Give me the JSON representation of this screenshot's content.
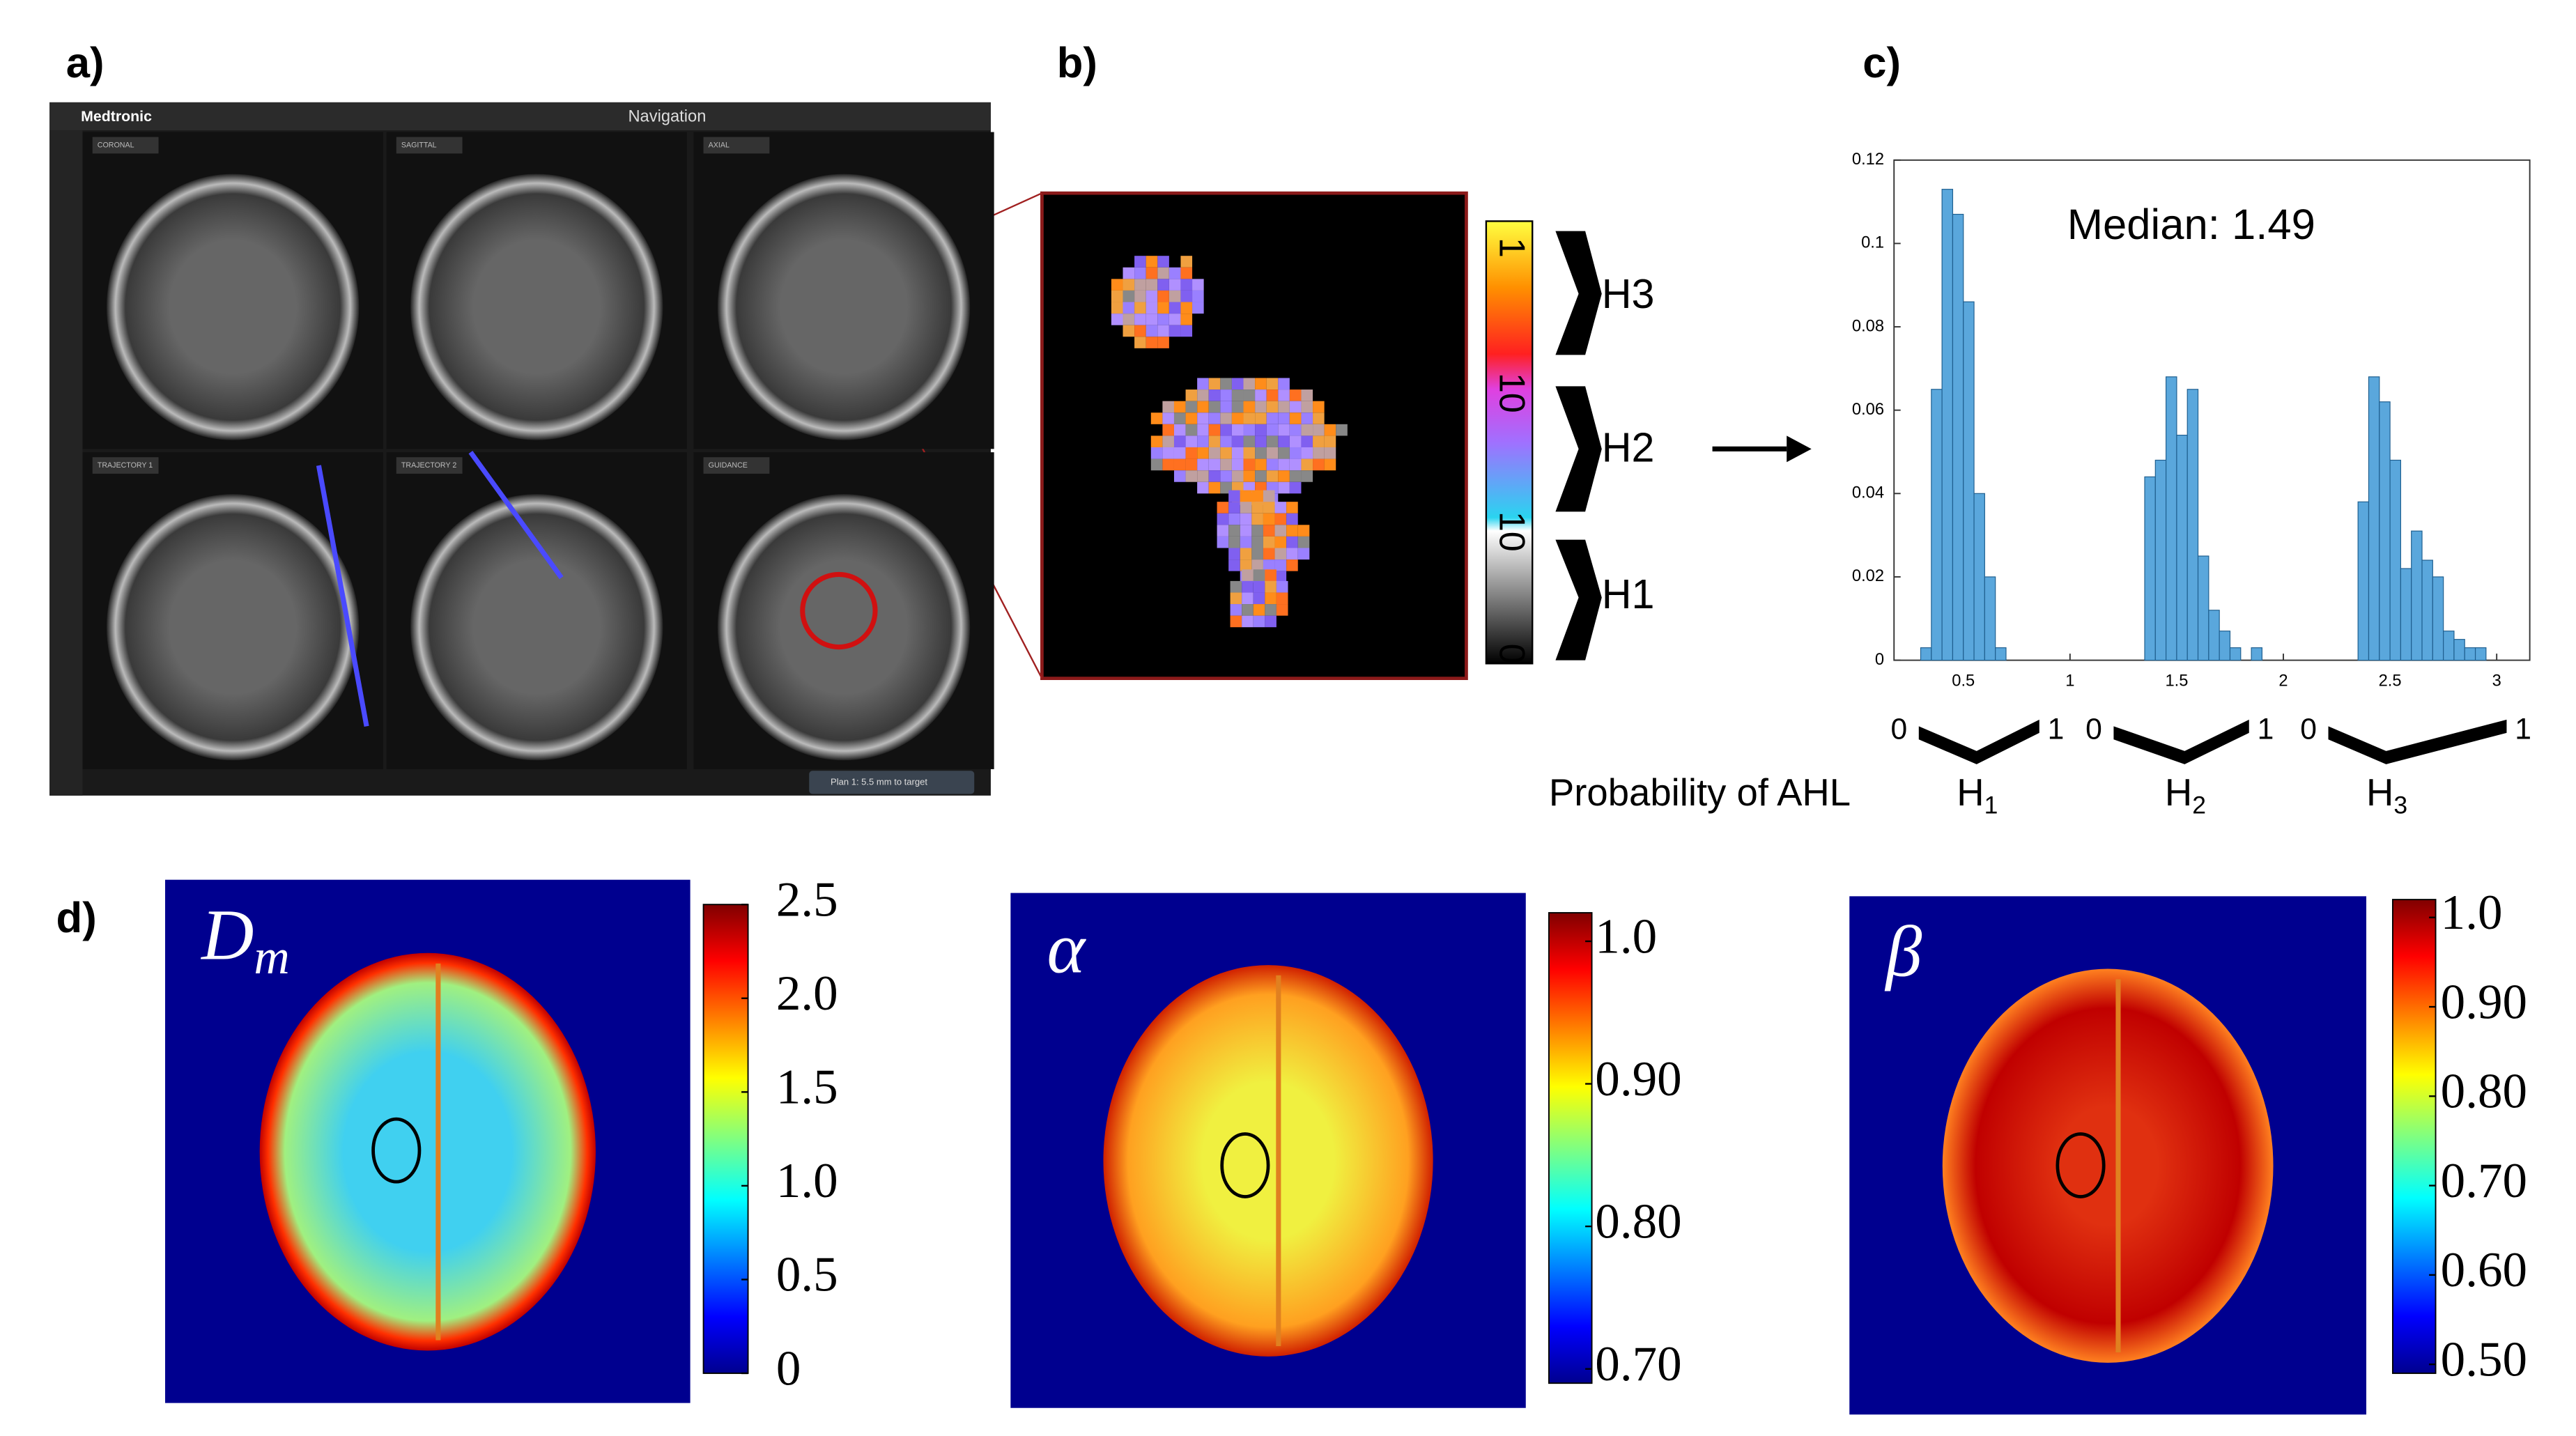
{
  "panels": {
    "a": "a)",
    "b": "b)",
    "c": "c)",
    "d": "d)"
  },
  "navigation": {
    "brand": "Medtronic",
    "title": "Navigation",
    "views": [
      "CORONAL",
      "SAGITTAL",
      "AXIAL",
      "TRAJECTORY 1",
      "TRAJECTORY 2",
      "GUIDANCE"
    ],
    "status": "Plan 1: 5.5 mm to target"
  },
  "probability_map": {
    "colorbar_labels": [
      "0",
      "10",
      "10",
      "1"
    ],
    "classes": [
      "H3",
      "H2",
      "H1"
    ]
  },
  "chart_data": {
    "type": "histogram",
    "annotation": "Median: 1.49",
    "x_label": "Probability of AHL",
    "bins": [
      0.3,
      0.35,
      0.4,
      0.45,
      0.5,
      0.55,
      0.6,
      0.65,
      0.7,
      0.75,
      0.8,
      0.85,
      0.9,
      0.95,
      1.0,
      1.05,
      1.1,
      1.15,
      1.2,
      1.25,
      1.3,
      1.35,
      1.4,
      1.45,
      1.5,
      1.55,
      1.6,
      1.65,
      1.7,
      1.75,
      1.8,
      1.85,
      1.9,
      1.95,
      2.0,
      2.05,
      2.1,
      2.15,
      2.2,
      2.25,
      2.3,
      2.35,
      2.4,
      2.45,
      2.5,
      2.55,
      2.6,
      2.65,
      2.7,
      2.75,
      2.8,
      2.85,
      2.9,
      2.95
    ],
    "values": [
      0.003,
      0.065,
      0.113,
      0.107,
      0.086,
      0.04,
      0.02,
      0.003,
      0,
      0,
      0,
      0,
      0,
      0,
      0,
      0,
      0,
      0,
      0,
      0,
      0,
      0.044,
      0.048,
      0.068,
      0.054,
      0.065,
      0.025,
      0.012,
      0.007,
      0.003,
      0,
      0.003,
      0,
      0,
      0,
      0,
      0,
      0,
      0,
      0,
      0,
      0.038,
      0.068,
      0.062,
      0.048,
      0.022,
      0.031,
      0.024,
      0.02,
      0.007,
      0.005,
      0.003,
      0.003
    ],
    "color": "#5aa7dc",
    "xlim": [
      0.175,
      3.155
    ],
    "ylim": [
      0,
      0.12
    ],
    "xticks": [
      0.5,
      1,
      1.5,
      2,
      2.5,
      3
    ],
    "yticks": [
      0,
      0.02,
      0.04,
      0.06,
      0.08,
      0.1,
      0.12
    ],
    "groups": [
      {
        "letter": "H",
        "sub": "1",
        "range_labels": [
          "0",
          "1"
        ]
      },
      {
        "letter": "H",
        "sub": "2",
        "range_labels": [
          "0",
          "1"
        ]
      },
      {
        "letter": "H",
        "sub": "3",
        "range_labels": [
          "0",
          "1"
        ]
      }
    ]
  },
  "maps": [
    {
      "symbol": "D",
      "sub": "m",
      "clim": [
        0,
        2.5
      ],
      "ticks": [
        0,
        0.5,
        {
          "value": 1,
          "label": "1.0"
        },
        1.5,
        {
          "value": 2,
          "label": "2.0"
        },
        2.5
      ]
    },
    {
      "symbol": "α",
      "clim": [
        0.69,
        1.02
      ],
      "ticks": [
        {
          "value": 0.7,
          "label": "0.70"
        },
        {
          "value": 0.8,
          "label": "0.80"
        },
        {
          "value": 0.9,
          "label": "0.90"
        },
        {
          "value": 1,
          "label": "1.0"
        }
      ]
    },
    {
      "symbol": "β",
      "clim": [
        0.49,
        1.02
      ],
      "ticks": [
        {
          "value": 0.5,
          "label": "0.50"
        },
        {
          "value": 0.6,
          "label": "0.60"
        },
        {
          "value": 0.7,
          "label": "0.70"
        },
        {
          "value": 0.8,
          "label": "0.80"
        },
        {
          "value": 0.9,
          "label": "0.90"
        },
        {
          "value": 1,
          "label": "1.0"
        }
      ]
    }
  ]
}
